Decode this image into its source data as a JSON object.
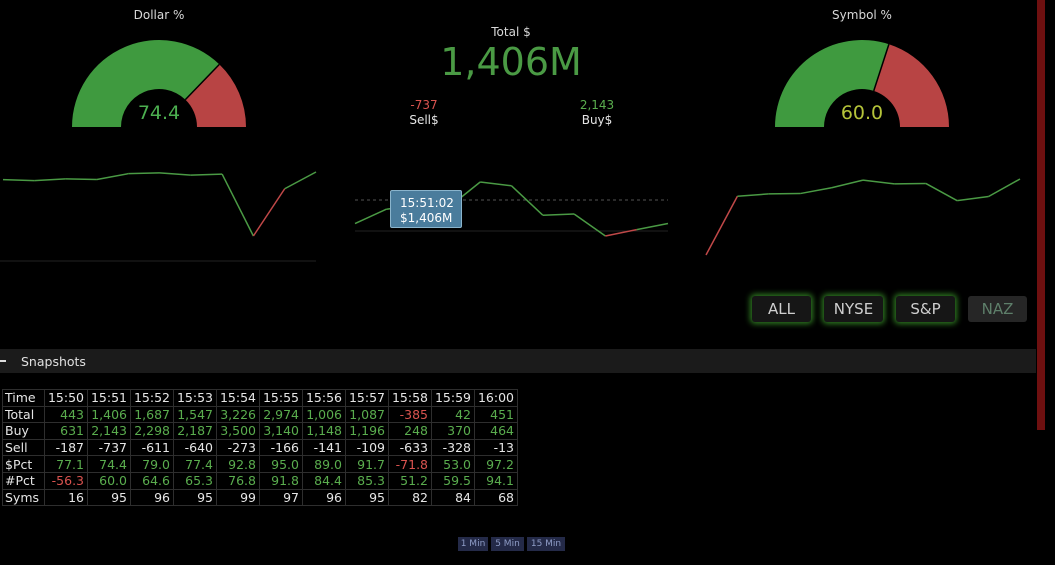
{
  "gauges": [
    {
      "title": "Dollar %",
      "value": 74.4,
      "color": "#3f9a3f",
      "rest_color": "#b84444",
      "text_color": "#4caf50"
    },
    {
      "title": "Symbol %",
      "value": {
        "value": 60,
        "label": "60.0"
      },
      "color": "#3f9a3f",
      "rest_color": "#b84444",
      "text_color": "#b5c43a"
    }
  ],
  "total": {
    "title": "Total $",
    "value": "1,406M",
    "sell_value": "-737",
    "sell_label": "Sell$",
    "buy_value": "2,143",
    "buy_label": "Buy$"
  },
  "sparklines": [
    {
      "values": [
        77.1,
        74.4,
        79.0,
        77.4,
        92.8,
        95.0,
        89.0,
        91.7,
        -71.8,
        53.0,
        97.2
      ],
      "color": "#4a9a44",
      "negative_color": "#c04848"
    },
    {
      "values": [
        443,
        1406,
        1687,
        1547,
        3226,
        2974,
        1006,
        1087,
        -385,
        42,
        451
      ],
      "color": "#4a9a44",
      "negative_color": "#c04848",
      "tooltip": {
        "time": "15:51:02",
        "value": "$1,406M"
      }
    },
    {
      "values": [
        -56.3,
        60.0,
        64.6,
        65.3,
        76.8,
        91.8,
        84.4,
        85.3,
        51.2,
        59.5,
        94.1
      ],
      "color": "#4a9a44",
      "negative_color": "#c04848"
    }
  ],
  "exchange_buttons": [
    "ALL",
    "NYSE",
    "S&P",
    "NAZ"
  ],
  "section": {
    "title": "Snapshots"
  },
  "table": {
    "header": [
      "Time",
      "15:50",
      "15:51",
      "15:52",
      "15:53",
      "15:54",
      "15:55",
      "15:56",
      "15:57",
      "15:58",
      "15:59",
      "16:00"
    ],
    "rows": [
      {
        "label": "Total",
        "cells": [
          "443",
          "1,406",
          "1,687",
          "1,547",
          "3,226",
          "2,974",
          "1,006",
          "1,087",
          "-385",
          "42",
          "451"
        ],
        "color": "#5aad4e",
        "negative_color": "#d9534f"
      },
      {
        "label": "Buy",
        "cells": [
          "631",
          "2,143",
          "2,298",
          "2,187",
          "3,500",
          "3,140",
          "1,148",
          "1,196",
          "248",
          "370",
          "464"
        ],
        "color": "#5aad4e",
        "negative_color": "#d9534f"
      },
      {
        "label": "Sell",
        "cells": [
          "-187",
          "-737",
          "-611",
          "-640",
          "-273",
          "-166",
          "-141",
          "-109",
          "-633",
          "-328",
          "-13"
        ],
        "color": "#e6e6e6",
        "negative_color": "#e6e6e6"
      },
      {
        "label": "$Pct",
        "cells": [
          "77.1",
          "74.4",
          "79.0",
          "77.4",
          "92.8",
          "95.0",
          "89.0",
          "91.7",
          "-71.8",
          "53.0",
          "97.2"
        ],
        "color": "#5aad4e",
        "negative_color": "#d9534f"
      },
      {
        "label": "#Pct",
        "cells": [
          "-56.3",
          "60.0",
          "64.6",
          "65.3",
          "76.8",
          "91.8",
          "84.4",
          "85.3",
          "51.2",
          "59.5",
          "94.1"
        ],
        "color": "#5aad4e",
        "negative_color": "#d9534f"
      },
      {
        "label": "Syms",
        "cells": [
          "16",
          "95",
          "96",
          "95",
          "99",
          "97",
          "96",
          "95",
          "82",
          "84",
          "68"
        ],
        "color": "#e6e6e6",
        "negative_color": "#e6e6e6"
      }
    ]
  },
  "interval_buttons": [
    "1 Min",
    "5 Min",
    "15 Min"
  ]
}
